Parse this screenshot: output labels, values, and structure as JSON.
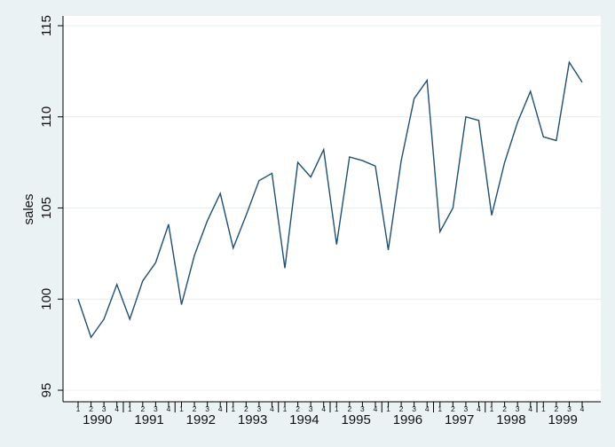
{
  "chart_data": {
    "type": "line",
    "title": "",
    "xlabel": "",
    "ylabel": "sales",
    "ylim": [
      95,
      115
    ],
    "yticks": [
      "95",
      "100",
      "105",
      "110",
      "115"
    ],
    "grid": true,
    "legend": "none",
    "quarters": [
      "1",
      "2",
      "3",
      "4"
    ],
    "years": [
      "1990",
      "1991",
      "1992",
      "1993",
      "1994",
      "1995",
      "1996",
      "1997",
      "1998",
      "1999"
    ],
    "series": [
      {
        "values": [
          100.0,
          97.9,
          98.9,
          100.8,
          98.9,
          101.0,
          102.0,
          104.1,
          99.7,
          102.4,
          104.3,
          105.8,
          102.8,
          104.6,
          106.5,
          106.9,
          101.7,
          107.5,
          106.7,
          108.2,
          103.0,
          107.8,
          107.6,
          107.3,
          102.7,
          107.6,
          111.0,
          112.0,
          103.7,
          105.0,
          110.0,
          109.8,
          104.6,
          107.5,
          109.7,
          111.4,
          108.9,
          108.7,
          113.0,
          111.9
        ]
      }
    ],
    "colors": {
      "line": "#1f4f73",
      "background": "#eaf2f3",
      "plot_area": "#ffffff",
      "grid": "#e4eced",
      "axis": "#000000"
    }
  }
}
